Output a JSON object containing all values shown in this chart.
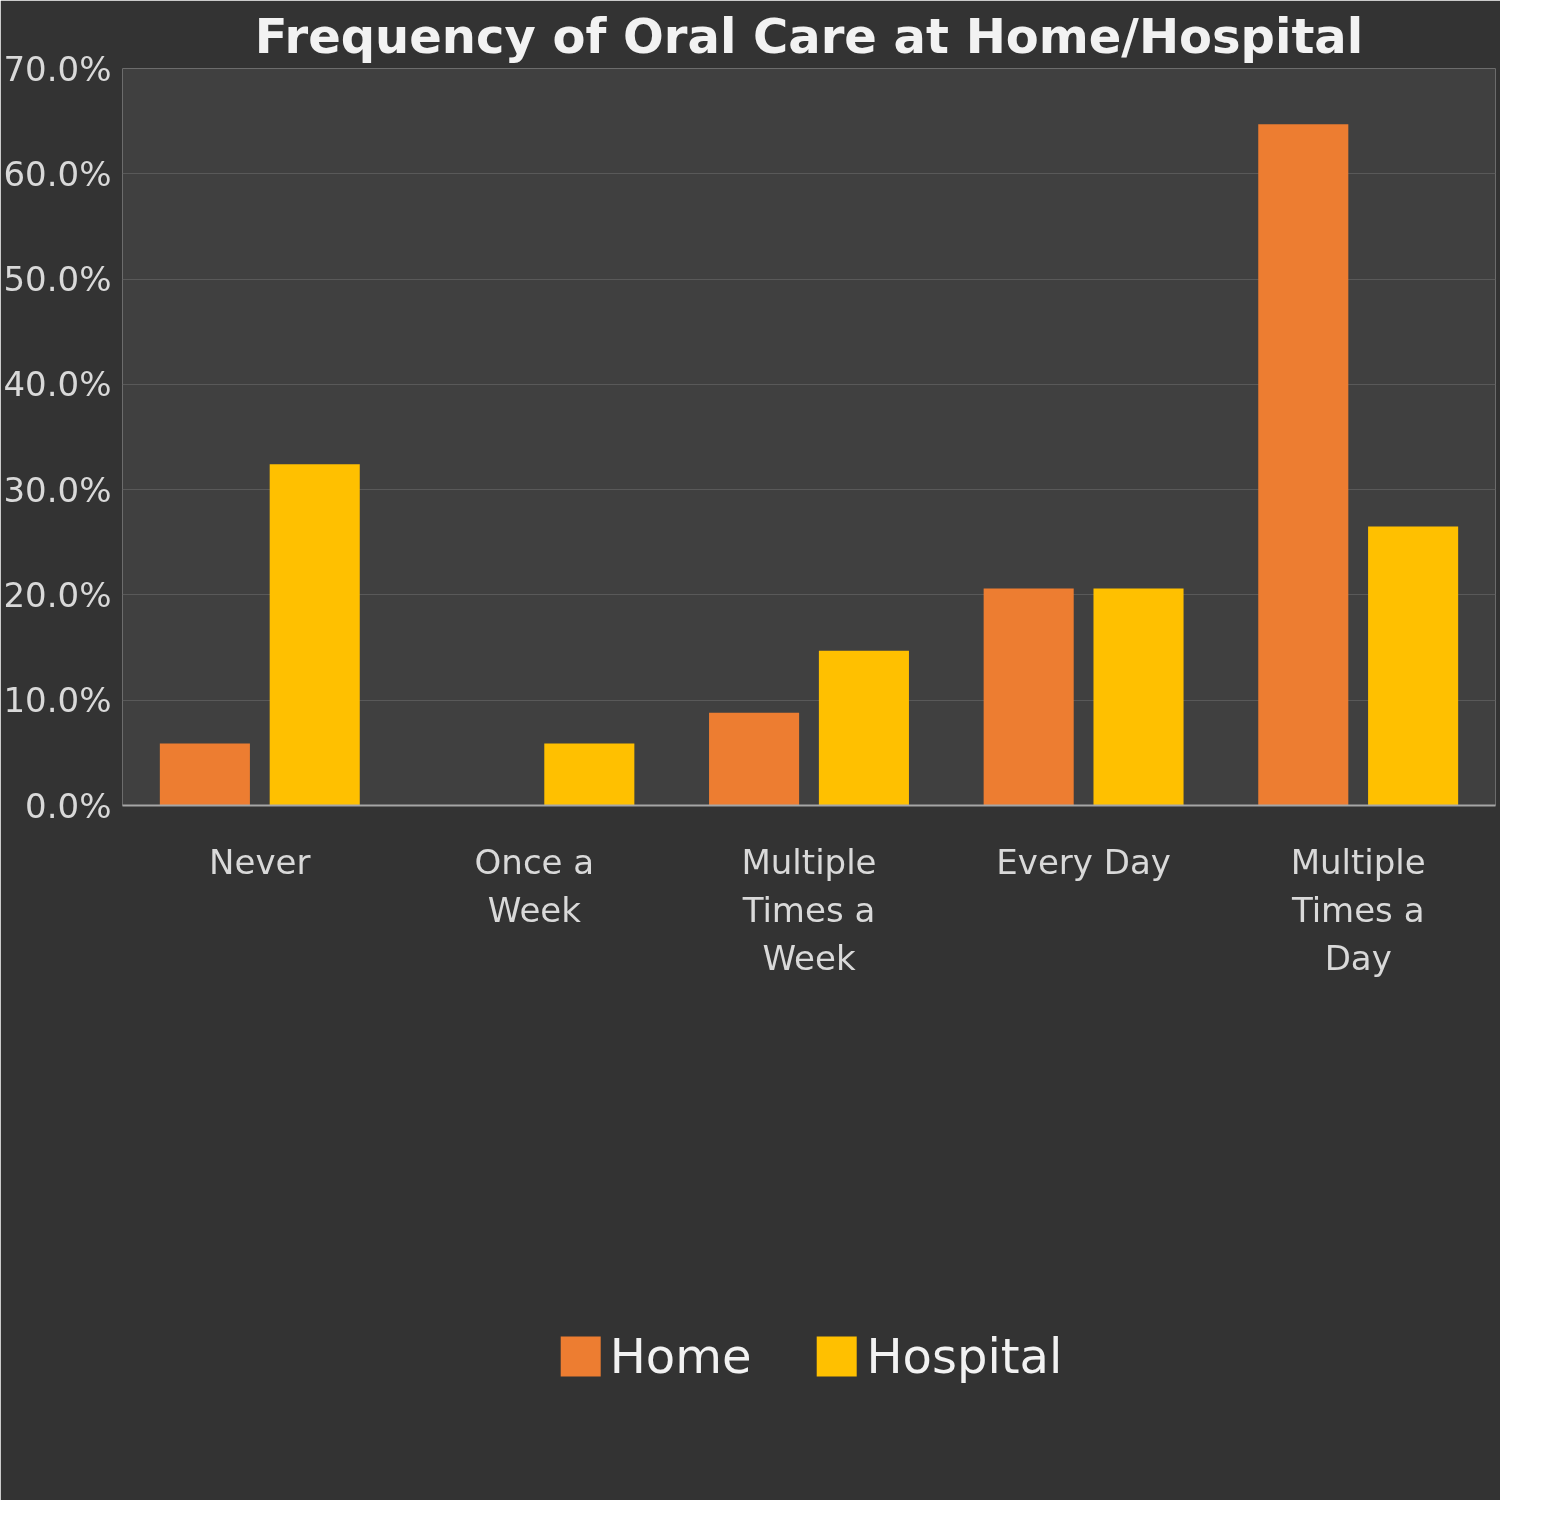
{
  "chart_data": {
    "type": "bar",
    "title": "Frequency of Oral Care at Home/Hospital",
    "categories": [
      "Never",
      "Once a Week",
      "Multiple Times a Week",
      "Every Day",
      "Multiple Times a Day"
    ],
    "series": [
      {
        "name": "Home",
        "color": "#ed7d31",
        "values": [
          5.9,
          0,
          8.8,
          20.6,
          64.7
        ]
      },
      {
        "name": "Hospital",
        "color": "#ffc000",
        "values": [
          32.4,
          5.9,
          14.7,
          20.6,
          26.5
        ]
      }
    ],
    "ylim": [
      0,
      70
    ],
    "yticks": [
      {
        "value": 0,
        "label": "0.0%"
      },
      {
        "value": 10,
        "label": "10.0%"
      },
      {
        "value": 20,
        "label": "20.0%"
      },
      {
        "value": 30,
        "label": "30.0%"
      },
      {
        "value": 40,
        "label": "40.0%"
      },
      {
        "value": 50,
        "label": "50.0%"
      },
      {
        "value": 60,
        "label": "60.0%"
      },
      {
        "value": 70,
        "label": "70.0%"
      }
    ],
    "grid": "y",
    "legend": "bottom"
  }
}
